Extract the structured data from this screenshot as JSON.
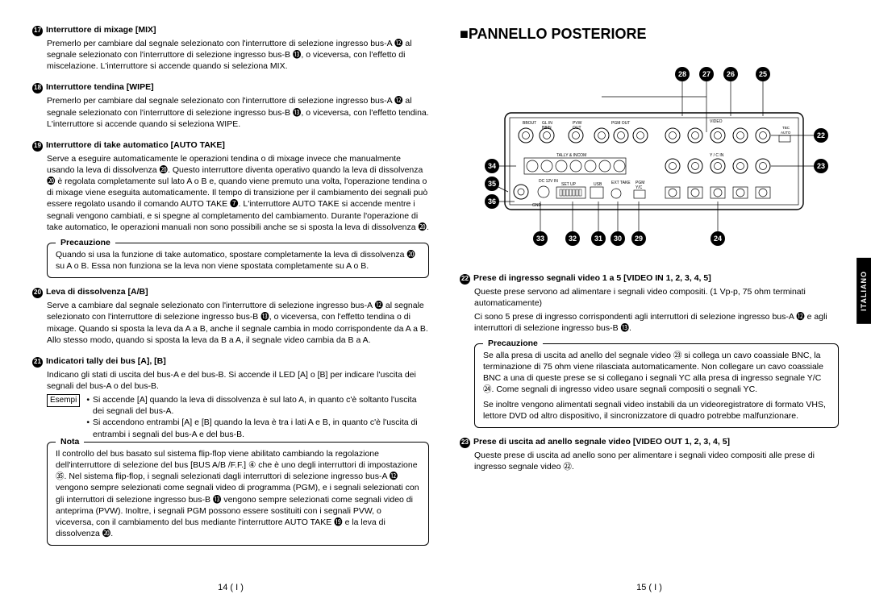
{
  "left": {
    "s17": {
      "num": "17",
      "title": "Interruttore di mixage [MIX]",
      "body": "Premerlo per cambiare dal segnale selezionato con l'interruttore di selezione ingresso bus-A ⓬ al segnale selezionato con l'interruttore di selezione ingresso bus-B ⓭, o viceversa, con l'effetto di miscelazione. L'interruttore si accende quando si seleziona MIX."
    },
    "s18": {
      "num": "18",
      "title": "Interruttore tendina [WIPE]",
      "body": "Premerlo per cambiare dal segnale selezionato con l'interruttore di selezione ingresso bus-A ⓬ al segnale selezionato con l'interruttore di selezione ingresso bus-B ⓭, o viceversa, con l'effetto tendina. L'interruttore si accende quando si seleziona WIPE."
    },
    "s19": {
      "num": "19",
      "title": "Interruttore di take automatico [AUTO TAKE]",
      "body": "Serve a eseguire automaticamente le operazioni tendina o di mixage invece che manualmente usando la leva di dissolvenza ⓴. Questo interruttore diventa operativo quando la leva di dissolvenza ⓴ è regolata completamente sul lato A o B e, quando viene premuto una volta, l'operazione tendina o di mixage viene eseguita automaticamente. Il tempo di transizione per il cambiamento dei segnali può essere regolato usando il comando AUTO TAKE ❼. L'interruttore AUTO TAKE si accende mentre i segnali vengono cambiati, e si spegne al completamento del cambiamento. Durante l'operazione di take automatico, le operazioni manuali non sono possibili anche se si sposta la leva di dissolvenza ⓴."
    },
    "precauzione1_label": "Precauzione",
    "precauzione1": "Quando si usa la funzione di take automatico, spostare completamente la leva di dissolvenza ⓴ su A o B. Essa non funziona se la leva non viene spostata completamente su A o B.",
    "s20": {
      "num": "20",
      "title": "Leva di dissolvenza [A/B]",
      "body": "Serve a cambiare dal segnale selezionato con l'interruttore di selezione ingresso bus-A ⓬ al segnale selezionato con l'interruttore di selezione ingresso bus-B ⓭, o viceversa, con l'effetto tendina o di mixage. Quando si sposta la leva da A a B, anche il segnale cambia in modo corrispondente da A a B. Allo stesso modo, quando si sposta la leva da B a A, il segnale video cambia da B a A."
    },
    "s21": {
      "num": "21",
      "title": "Indicatori tally dei bus [A], [B]",
      "body": "Indicano gli stati di uscita del bus-A e del bus-B. Si accende il LED [A] o [B] per indicare l'uscita dei segnali del bus-A o del bus-B."
    },
    "esempi_label": "Esempi",
    "esempi1": "Si accende [A] quando la leva di dissolvenza è sul lato A, in quanto c'è soltanto l'uscita dei segnali del bus-A.",
    "esempi2": "Si accendono entrambi [A] e [B] quando la leva è tra i lati A e B, in quanto c'è l'uscita di entrambi i segnali del bus-A e del bus-B.",
    "nota_label": "Nota",
    "nota": "Il controllo del bus basato sul sistema flip-flop viene abilitato cambiando la regolazione dell'interruttore di selezione del bus [BUS A/B /F.F.] ④ che è uno degli interruttori di impostazione ㉟. Nel sistema flip-flop, i segnali selezionati dagli interruttori di selezione ingresso bus-A ⓬ vengono sempre selezionati come segnali video di programma (PGM), e i segnali selezionati con gli interruttori di selezione ingresso bus-B ⓭ vengono sempre selezionati come segnali video di anteprima (PVW). Inoltre, i segnali PGM possono essere sostituiti con i segnali PVW, o viceversa, con il cambiamento del bus mediante l'interruttore AUTO TAKE ⓳ e la leva di dissolvenza ⓴.",
    "pagenum": "14 ( I )"
  },
  "right": {
    "title": "■PANNELLO POSTERIORE",
    "panel": {
      "callouts_top": [
        "28",
        "27",
        "26",
        "25"
      ],
      "callouts_right": [
        "22",
        "23"
      ],
      "callouts_left": [
        "34",
        "35",
        "36"
      ],
      "callouts_bottom": [
        "33",
        "32",
        "31",
        "30",
        "29",
        "24"
      ],
      "labels": {
        "bbout": "BBOUT",
        "glin": "GL IN",
        "bbin": "BBIN",
        "pvw": "PVW",
        "out": "OUT",
        "pgmout": "PGM OUT",
        "video": "VIDEO",
        "tally": "TALLY & INCOM",
        "ycin": "Y / C IN",
        "tbc": "TBC",
        "auto": "AUTO",
        "dc": "DC 12V IN",
        "setup": "SET UP",
        "usb": "USB",
        "exttake": "EXT TAKE",
        "pgm1": "PGM",
        "pgm2": "Y/C",
        "gnd": "GND"
      }
    },
    "s22": {
      "num": "22",
      "title": "Prese di ingresso segnali video 1 a 5 [VIDEO IN 1, 2, 3, 4, 5]",
      "body1": "Queste prese servono ad alimentare i segnali video compositi. (1 Vp-p, 75 ohm terminati automaticamente)",
      "body2": "Ci sono 5 prese di ingresso corrispondenti agli interruttori di selezione ingresso bus-A ⓬ e agli interruttori di selezione ingresso bus-B ⓭."
    },
    "precauzione2_label": "Precauzione",
    "precauzione2a": "Se alla presa di uscita ad anello del segnale video ㉓ si collega un cavo coassiale BNC, la terminazione di 75 ohm viene rilasciata automaticamente. Non collegare un cavo coassiale BNC a una di queste prese se si collegano i segnali YC alla presa di ingresso segnale Y/C ㉔. Come segnali di ingresso video usare segnali compositi o segnali YC.",
    "precauzione2b": "Se inoltre vengono alimentati segnali video instabili da un videoregistratore di formato VHS, lettore DVD od altro dispositivo, il sincronizzatore di quadro potrebbe malfunzionare.",
    "s23": {
      "num": "23",
      "title": "Prese di uscita ad anello segnale video [VIDEO OUT 1, 2, 3, 4, 5]",
      "body": "Queste prese di uscita ad anello sono per alimentare i segnali video compositi alle prese di ingresso segnale video ㉒."
    },
    "sidetab": "ITALIANO",
    "pagenum": "15 ( I )"
  }
}
